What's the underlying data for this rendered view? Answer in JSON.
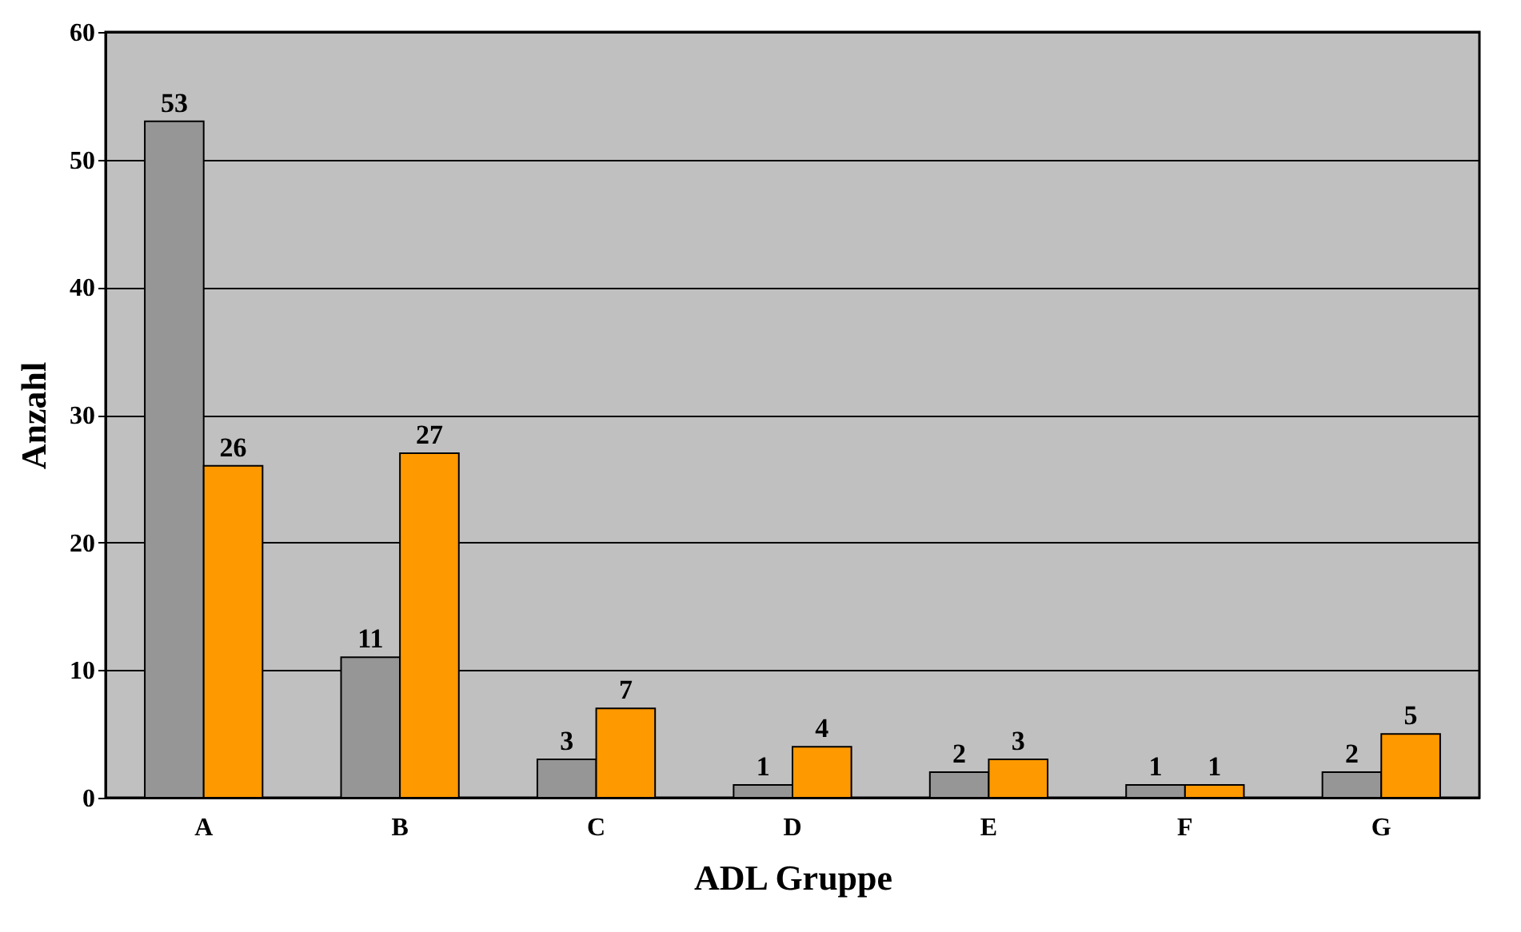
{
  "chart_data": {
    "type": "bar",
    "xlabel": "ADL Gruppe",
    "ylabel": "Anzahl",
    "categories": [
      "A",
      "B",
      "C",
      "D",
      "E",
      "F",
      "G"
    ],
    "series": [
      {
        "color": "#969696",
        "values": [
          53,
          11,
          3,
          1,
          2,
          1,
          2
        ]
      },
      {
        "color": "#ff9900",
        "values": [
          26,
          27,
          7,
          4,
          3,
          1,
          5
        ]
      }
    ],
    "ylim": [
      0,
      60
    ],
    "yticks": [
      0,
      10,
      20,
      30,
      40,
      50,
      60
    ],
    "grid": "y",
    "data_labels": true,
    "legend": false
  }
}
